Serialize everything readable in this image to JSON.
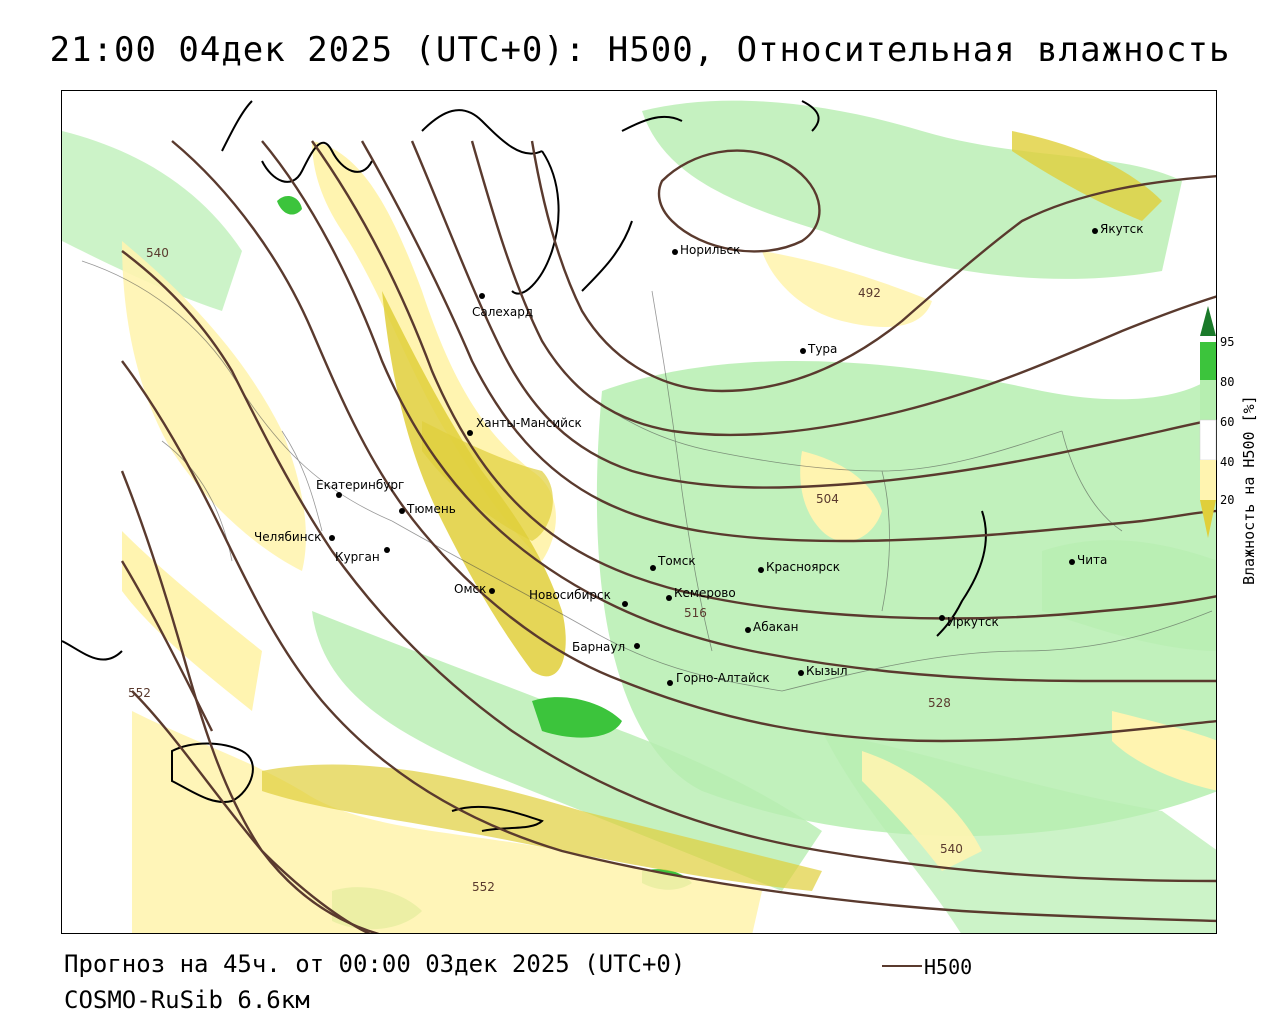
{
  "title": "21:00 04дек 2025 (UTC+0): H500, Относительная влажность",
  "footer": {
    "forecast": "Прогноз на 45ч. от 00:00 03дек 2025 (UTC+0)",
    "model": "COSMO-RuSib 6.6км",
    "contour_legend": "H500"
  },
  "colorbar": {
    "title": "Влажность на H500 [%]",
    "ticks": [
      "95",
      "80",
      "60",
      "40",
      "20"
    ],
    "colors": {
      "very_high": "#1a7a2a",
      "high": "#3cc43c",
      "mid": "#b6eeb0",
      "neutral": "#ffffff",
      "low": "#fff4b0",
      "very_low": "#e0cf3a"
    }
  },
  "contour_color": "#5a3a2e",
  "contour_labels": [
    "540",
    "492",
    "504",
    "516",
    "528",
    "552",
    "540",
    "552"
  ],
  "cities": [
    "Якутск",
    "Норильск",
    "Салехард",
    "Тура",
    "Ханты-Мансийск",
    "Екатеринбург",
    "Тюмень",
    "Челябинск",
    "Курган",
    "Омск",
    "Новосибирск",
    "Томск",
    "Кемерово",
    "Красноярск",
    "Абакан",
    "Барнаул",
    "Горно-Алтайск",
    "Кызыл",
    "Иркутск",
    "Чита"
  ]
}
